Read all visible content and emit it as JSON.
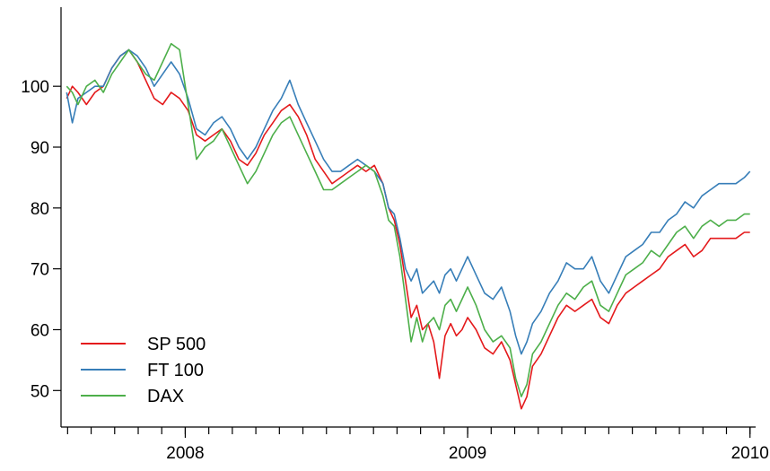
{
  "chart_data": {
    "type": "line",
    "title": "",
    "xlabel": "",
    "ylabel": "",
    "xlim": [
      2007.56,
      2010.02
    ],
    "ylim": [
      44,
      113
    ],
    "yticks": [
      50,
      60,
      70,
      80,
      90,
      100
    ],
    "xtick_labels": [
      {
        "label": "2008",
        "x": 2008.0
      },
      {
        "label": "2009",
        "x": 2009.0
      },
      {
        "label": "2010",
        "x": 2010.0
      }
    ],
    "grid": false,
    "legend": {
      "position": "bottom-left"
    },
    "series": [
      {
        "name": "SP 500",
        "color": "#e41a1c",
        "x": [
          2007.58,
          2007.6,
          2007.62,
          2007.65,
          2007.68,
          2007.71,
          2007.74,
          2007.77,
          2007.8,
          2007.83,
          2007.86,
          2007.89,
          2007.92,
          2007.95,
          2007.98,
          2008.01,
          2008.04,
          2008.07,
          2008.1,
          2008.13,
          2008.16,
          2008.19,
          2008.22,
          2008.25,
          2008.28,
          2008.31,
          2008.34,
          2008.37,
          2008.4,
          2008.43,
          2008.46,
          2008.49,
          2008.52,
          2008.55,
          2008.58,
          2008.61,
          2008.64,
          2008.67,
          2008.7,
          2008.72,
          2008.74,
          2008.76,
          2008.78,
          2008.8,
          2008.82,
          2008.84,
          2008.86,
          2008.88,
          2008.9,
          2008.92,
          2008.94,
          2008.96,
          2008.98,
          2009.0,
          2009.03,
          2009.06,
          2009.09,
          2009.12,
          2009.15,
          2009.17,
          2009.19,
          2009.21,
          2009.23,
          2009.26,
          2009.29,
          2009.32,
          2009.35,
          2009.38,
          2009.41,
          2009.44,
          2009.47,
          2009.5,
          2009.53,
          2009.56,
          2009.59,
          2009.62,
          2009.65,
          2009.68,
          2009.71,
          2009.74,
          2009.77,
          2009.8,
          2009.83,
          2009.86,
          2009.89,
          2009.92,
          2009.95,
          2009.98,
          2010.0
        ],
        "values": [
          98,
          100,
          99,
          97,
          99,
          100,
          103,
          105,
          106,
          104,
          101,
          98,
          97,
          99,
          98,
          96,
          92,
          91,
          92,
          93,
          91,
          88,
          87,
          89,
          92,
          94,
          96,
          97,
          95,
          92,
          88,
          86,
          84,
          85,
          86,
          87,
          86,
          87,
          84,
          80,
          78,
          74,
          68,
          62,
          64,
          60,
          61,
          58,
          52,
          59,
          61,
          59,
          60,
          62,
          60,
          57,
          56,
          58,
          55,
          51,
          47,
          49,
          54,
          56,
          59,
          62,
          64,
          63,
          64,
          65,
          62,
          61,
          64,
          66,
          67,
          68,
          69,
          70,
          72,
          73,
          74,
          72,
          73,
          75,
          75,
          75,
          75,
          76,
          76
        ]
      },
      {
        "name": "FT 100",
        "color": "#377eb8",
        "x": [
          2007.58,
          2007.6,
          2007.62,
          2007.65,
          2007.68,
          2007.71,
          2007.74,
          2007.77,
          2007.8,
          2007.83,
          2007.86,
          2007.89,
          2007.92,
          2007.95,
          2007.98,
          2008.01,
          2008.04,
          2008.07,
          2008.1,
          2008.13,
          2008.16,
          2008.19,
          2008.22,
          2008.25,
          2008.28,
          2008.31,
          2008.34,
          2008.37,
          2008.4,
          2008.43,
          2008.46,
          2008.49,
          2008.52,
          2008.55,
          2008.58,
          2008.61,
          2008.64,
          2008.67,
          2008.7,
          2008.72,
          2008.74,
          2008.76,
          2008.78,
          2008.8,
          2008.82,
          2008.84,
          2008.86,
          2008.88,
          2008.9,
          2008.92,
          2008.94,
          2008.96,
          2008.98,
          2009.0,
          2009.03,
          2009.06,
          2009.09,
          2009.12,
          2009.15,
          2009.17,
          2009.19,
          2009.21,
          2009.23,
          2009.26,
          2009.29,
          2009.32,
          2009.35,
          2009.38,
          2009.41,
          2009.44,
          2009.47,
          2009.5,
          2009.53,
          2009.56,
          2009.59,
          2009.62,
          2009.65,
          2009.68,
          2009.71,
          2009.74,
          2009.77,
          2009.8,
          2009.83,
          2009.86,
          2009.89,
          2009.92,
          2009.95,
          2009.98,
          2010.0
        ],
        "values": [
          99,
          94,
          98,
          99,
          100,
          100,
          103,
          105,
          106,
          105,
          103,
          100,
          102,
          104,
          102,
          98,
          93,
          92,
          94,
          95,
          93,
          90,
          88,
          90,
          93,
          96,
          98,
          101,
          97,
          94,
          91,
          88,
          86,
          86,
          87,
          88,
          87,
          86,
          84,
          80,
          79,
          75,
          70,
          68,
          70,
          66,
          67,
          68,
          66,
          69,
          70,
          68,
          70,
          72,
          69,
          66,
          65,
          67,
          63,
          59,
          56,
          58,
          61,
          63,
          66,
          68,
          71,
          70,
          70,
          72,
          68,
          66,
          69,
          72,
          73,
          74,
          76,
          76,
          78,
          79,
          81,
          80,
          82,
          83,
          84,
          84,
          84,
          85,
          86
        ]
      },
      {
        "name": "DAX",
        "color": "#4daf4a",
        "x": [
          2007.58,
          2007.6,
          2007.62,
          2007.65,
          2007.68,
          2007.71,
          2007.74,
          2007.77,
          2007.8,
          2007.83,
          2007.86,
          2007.89,
          2007.92,
          2007.95,
          2007.98,
          2008.01,
          2008.04,
          2008.07,
          2008.1,
          2008.13,
          2008.16,
          2008.19,
          2008.22,
          2008.25,
          2008.28,
          2008.31,
          2008.34,
          2008.37,
          2008.4,
          2008.43,
          2008.46,
          2008.49,
          2008.52,
          2008.55,
          2008.58,
          2008.61,
          2008.64,
          2008.67,
          2008.7,
          2008.72,
          2008.74,
          2008.76,
          2008.78,
          2008.8,
          2008.82,
          2008.84,
          2008.86,
          2008.88,
          2008.9,
          2008.92,
          2008.94,
          2008.96,
          2008.98,
          2009.0,
          2009.03,
          2009.06,
          2009.09,
          2009.12,
          2009.15,
          2009.17,
          2009.19,
          2009.21,
          2009.23,
          2009.26,
          2009.29,
          2009.32,
          2009.35,
          2009.38,
          2009.41,
          2009.44,
          2009.47,
          2009.5,
          2009.53,
          2009.56,
          2009.59,
          2009.62,
          2009.65,
          2009.68,
          2009.71,
          2009.74,
          2009.77,
          2009.8,
          2009.83,
          2009.86,
          2009.89,
          2009.92,
          2009.95,
          2009.98,
          2010.0
        ],
        "values": [
          100,
          99,
          97,
          100,
          101,
          99,
          102,
          104,
          106,
          104,
          102,
          101,
          104,
          107,
          106,
          97,
          88,
          90,
          91,
          93,
          90,
          87,
          84,
          86,
          89,
          92,
          94,
          95,
          92,
          89,
          86,
          83,
          83,
          84,
          85,
          86,
          87,
          86,
          82,
          78,
          77,
          72,
          65,
          58,
          62,
          58,
          61,
          62,
          60,
          64,
          65,
          63,
          65,
          67,
          64,
          60,
          58,
          59,
          57,
          52,
          49,
          51,
          56,
          58,
          61,
          64,
          66,
          65,
          67,
          68,
          64,
          63,
          66,
          69,
          70,
          71,
          73,
          72,
          74,
          76,
          77,
          75,
          77,
          78,
          77,
          78,
          78,
          79,
          79
        ]
      }
    ]
  }
}
